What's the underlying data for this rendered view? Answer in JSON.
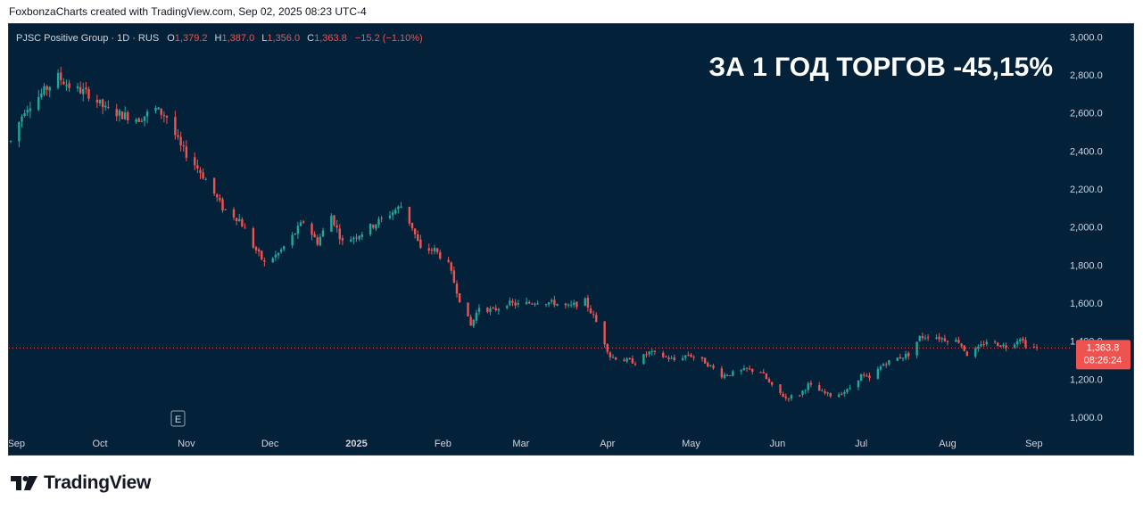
{
  "caption": "FoxbonzaCharts created with TradingView.com, Sep 02, 2025 08:23 UTC-4",
  "legend": {
    "symbol": "PJSC Positive Group · 1D · RUS",
    "o_label": "O",
    "o_value": "1,379.2",
    "h_label": "H",
    "h_value": "1,387.0",
    "l_label": "L",
    "l_value": "1,356.0",
    "c_label": "C",
    "c_value": "1,363.8",
    "change": "−15.2 (−1.10%)"
  },
  "headline": "ЗА 1 ГОД ТОРГОВ -45,15%",
  "price_tag": {
    "value": "1,363.8",
    "countdown": "08:26:24"
  },
  "event_marker": "E",
  "footer_brand": "TradingView",
  "colors": {
    "background": "#03223a",
    "up": "#26a69a",
    "down": "#ef5350",
    "text": "#d1d4dc"
  },
  "chart_data": {
    "type": "candlestick",
    "x_tick_labels": [
      "Sep",
      "Oct",
      "Nov",
      "Dec",
      "2025",
      "Feb",
      "Mar",
      "Apr",
      "May",
      "Jun",
      "Jul",
      "Aug",
      "Sep"
    ],
    "y_tick_labels": [
      "1,000.0",
      "1,200.0",
      "1,400.0",
      "1,600.0",
      "1,800.0",
      "2,000.0",
      "2,200.0",
      "2,400.0",
      "2,600.0",
      "2,800.0",
      "3,000.0"
    ],
    "ylim": [
      920,
      3030
    ],
    "last_price": 1363.8,
    "grid": false,
    "trend_path": [
      [
        "2024-08-30",
        2450
      ],
      [
        "2024-09-04",
        2620
      ],
      [
        "2024-09-10",
        2700
      ],
      [
        "2024-09-16",
        2790
      ],
      [
        "2024-09-20",
        2740
      ],
      [
        "2024-09-27",
        2700
      ],
      [
        "2024-10-03",
        2620
      ],
      [
        "2024-10-09",
        2590
      ],
      [
        "2024-10-15",
        2570
      ],
      [
        "2024-10-21",
        2620
      ],
      [
        "2024-10-25",
        2580
      ],
      [
        "2024-10-30",
        2420
      ],
      [
        "2024-11-04",
        2330
      ],
      [
        "2024-11-08",
        2250
      ],
      [
        "2024-11-14",
        2100
      ],
      [
        "2024-11-20",
        2040
      ],
      [
        "2024-11-25",
        1900
      ],
      [
        "2024-11-29",
        1810
      ],
      [
        "2024-12-04",
        1860
      ],
      [
        "2024-12-09",
        1950
      ],
      [
        "2024-12-13",
        2030
      ],
      [
        "2024-12-18",
        1920
      ],
      [
        "2024-12-23",
        2060
      ],
      [
        "2024-12-27",
        1920
      ],
      [
        "2025-01-03",
        1970
      ],
      [
        "2025-01-09",
        2030
      ],
      [
        "2025-01-14",
        2080
      ],
      [
        "2025-01-17",
        2110
      ],
      [
        "2025-01-21",
        2000
      ],
      [
        "2025-01-24",
        1880
      ],
      [
        "2025-01-29",
        1880
      ],
      [
        "2025-02-03",
        1800
      ],
      [
        "2025-02-07",
        1620
      ],
      [
        "2025-02-11",
        1480
      ],
      [
        "2025-02-14",
        1580
      ],
      [
        "2025-02-19",
        1560
      ],
      [
        "2025-02-24",
        1600
      ],
      [
        "2025-03-01",
        1590
      ],
      [
        "2025-03-07",
        1610
      ],
      [
        "2025-03-13",
        1600
      ],
      [
        "2025-03-18",
        1580
      ],
      [
        "2025-03-24",
        1610
      ],
      [
        "2025-03-28",
        1500
      ],
      [
        "2025-04-02",
        1320
      ],
      [
        "2025-04-07",
        1300
      ],
      [
        "2025-04-11",
        1290
      ],
      [
        "2025-04-16",
        1340
      ],
      [
        "2025-04-21",
        1320
      ],
      [
        "2025-04-25",
        1300
      ],
      [
        "2025-04-30",
        1330
      ],
      [
        "2025-05-06",
        1290
      ],
      [
        "2025-05-12",
        1220
      ],
      [
        "2025-05-16",
        1230
      ],
      [
        "2025-05-21",
        1250
      ],
      [
        "2025-05-26",
        1240
      ],
      [
        "2025-05-30",
        1160
      ],
      [
        "2025-06-04",
        1100
      ],
      [
        "2025-06-09",
        1120
      ],
      [
        "2025-06-12",
        1170
      ],
      [
        "2025-06-17",
        1130
      ],
      [
        "2025-06-21",
        1110
      ],
      [
        "2025-06-26",
        1140
      ],
      [
        "2025-07-01",
        1220
      ],
      [
        "2025-07-04",
        1200
      ],
      [
        "2025-07-09",
        1280
      ],
      [
        "2025-07-14",
        1310
      ],
      [
        "2025-07-18",
        1330
      ],
      [
        "2025-07-22",
        1420
      ],
      [
        "2025-07-26",
        1430
      ],
      [
        "2025-07-31",
        1410
      ],
      [
        "2025-08-05",
        1400
      ],
      [
        "2025-08-08",
        1330
      ],
      [
        "2025-08-12",
        1360
      ],
      [
        "2025-08-15",
        1400
      ],
      [
        "2025-08-20",
        1380
      ],
      [
        "2025-08-23",
        1370
      ],
      [
        "2025-08-27",
        1420
      ],
      [
        "2025-08-29",
        1380
      ],
      [
        "2025-09-02",
        1363.8
      ]
    ]
  }
}
